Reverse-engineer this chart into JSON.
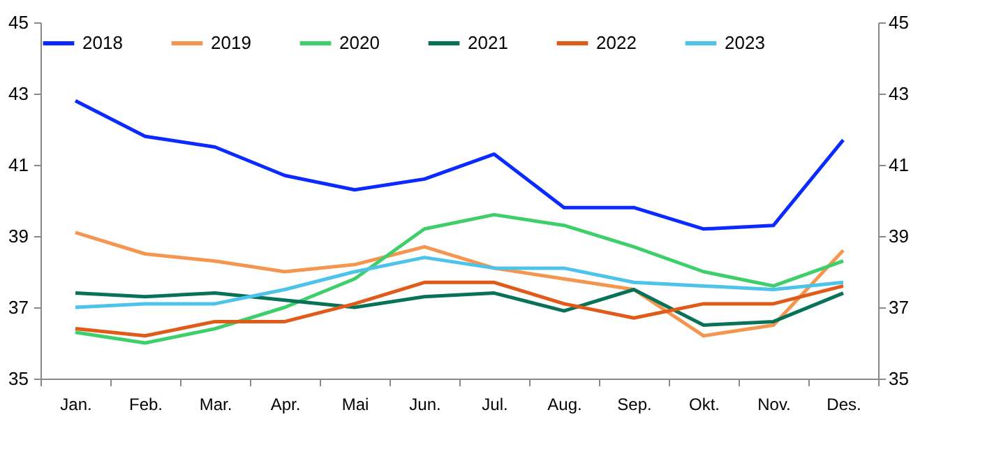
{
  "chart_data": {
    "type": "line",
    "categories": [
      "Jan.",
      "Feb.",
      "Mar.",
      "Apr.",
      "Mai",
      "Jun.",
      "Jul.",
      "Aug.",
      "Sep.",
      "Okt.",
      "Nov.",
      "Des."
    ],
    "series": [
      {
        "name": "2018",
        "color": "#0a2aff",
        "values": [
          42.8,
          41.8,
          41.5,
          40.7,
          40.3,
          40.6,
          41.3,
          39.8,
          39.8,
          39.2,
          39.3,
          41.7
        ]
      },
      {
        "name": "2019",
        "color": "#f4964f",
        "values": [
          39.1,
          38.5,
          38.3,
          38.0,
          38.2,
          38.7,
          38.1,
          37.8,
          37.5,
          36.2,
          36.5,
          38.6
        ]
      },
      {
        "name": "2020",
        "color": "#3ecf6a",
        "values": [
          36.3,
          36.0,
          36.4,
          37.0,
          37.8,
          39.2,
          39.6,
          39.3,
          38.7,
          38.0,
          37.6,
          38.3
        ]
      },
      {
        "name": "2021",
        "color": "#087258",
        "values": [
          37.4,
          37.3,
          37.4,
          37.2,
          37.0,
          37.3,
          37.4,
          36.9,
          37.5,
          36.5,
          36.6,
          37.4
        ]
      },
      {
        "name": "2022",
        "color": "#e05a1a",
        "values": [
          36.4,
          36.2,
          36.6,
          36.6,
          37.1,
          37.7,
          37.7,
          37.1,
          36.7,
          37.1,
          37.1,
          37.6
        ]
      },
      {
        "name": "2023",
        "color": "#4ec3ea",
        "values": [
          37.0,
          37.1,
          37.1,
          37.5,
          38.0,
          38.4,
          38.1,
          38.1,
          37.7,
          37.6,
          37.5,
          37.7
        ]
      }
    ],
    "ylim": [
      35,
      45
    ],
    "yticks": [
      35,
      37,
      39,
      41,
      43,
      45
    ],
    "y2lim": [
      35,
      45
    ],
    "y2ticks": [
      35,
      37,
      39,
      41,
      43,
      45
    ],
    "legend": "top",
    "grid": false,
    "marker": "none",
    "line_style": "solid"
  }
}
